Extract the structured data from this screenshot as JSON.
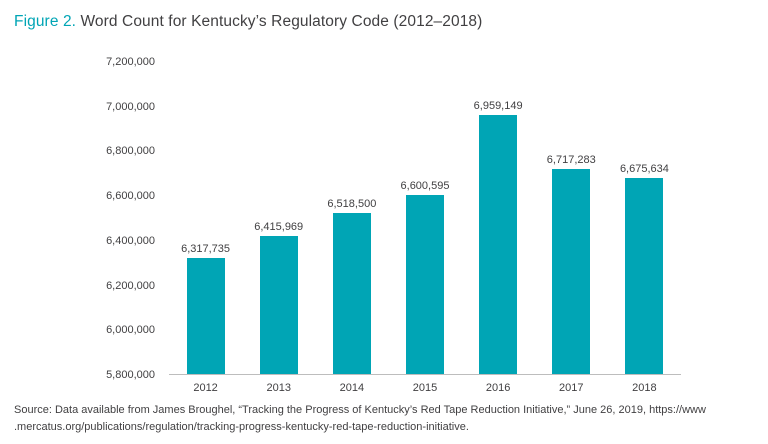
{
  "title": {
    "prefix": "Figure 2.",
    "text": " Word Count for Kentucky’s Regulatory Code (2012–2018)"
  },
  "source_lines": [
    "Source: Data available from James Broughel, “Tracking the Progress of Kentucky’s Red Tape Reduction Initiative,” June 26, 2019, https://www",
    ".mercatus.org/publications/regulation/tracking-progress-kentucky-red-tape-reduction-initiative."
  ],
  "colors": {
    "accent": "#00A5B5",
    "bar": "#00A5B5",
    "axis_line": "#bdbdbd",
    "text": "#414042"
  },
  "chart_data": {
    "type": "bar",
    "title": "Word Count for Kentucky’s Regulatory Code (2012–2018)",
    "categories": [
      "2012",
      "2013",
      "2014",
      "2015",
      "2016",
      "2017",
      "2018"
    ],
    "values": [
      6317735,
      6415969,
      6518500,
      6600595,
      6959149,
      6717283,
      6675634
    ],
    "value_labels": [
      "6,317,735",
      "6,415,969",
      "6,518,500",
      "6,600,595",
      "6,959,149",
      "6,717,283",
      "6,675,634"
    ],
    "xlabel": "",
    "ylabel": "",
    "ylim": [
      5800000,
      7200000
    ],
    "ytick_step": 200000,
    "grid": false,
    "legend": false
  }
}
